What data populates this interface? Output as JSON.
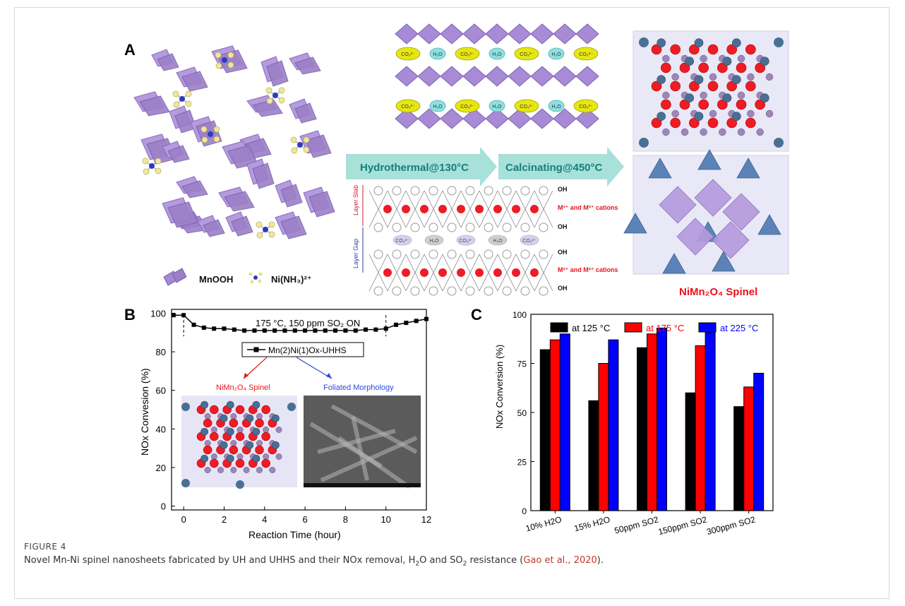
{
  "figure": {
    "label": "FIGURE 4",
    "caption_pre": "Novel Mn-Ni spinel nanosheets fabricated by UH and UHHS and their NOx removal, H",
    "caption_sub1": "2",
    "caption_mid": "O and SO",
    "caption_sub2": "2",
    "caption_post": " resistance (",
    "caption_ref": "Gao et al., 2020",
    "caption_end": ")."
  },
  "panels": {
    "a": "A",
    "b": "B",
    "c": "C"
  },
  "panel_a": {
    "legend_mnooh": "MnOOH",
    "legend_ni": "Ni(NH₃)²⁺",
    "arrow1": "Hydrothermal@130°C",
    "arrow2": "Calcinating@450°C",
    "ldh_oh": "OH",
    "ldh_cations": "M²⁺ and M³⁺ cations",
    "layer_slab": "Layer Slab",
    "layer_gap": "Layer Gap",
    "co3": "CO₃²⁻",
    "h2o": "H₂O",
    "spinel_label": "NiMn₂O₄ Spinel",
    "colors": {
      "purple": "#9b7fc7",
      "red": "#e8141b",
      "blue": "#4a6f95",
      "arrow": "#9fd8d3",
      "arrow_text": "#1a8a80"
    }
  },
  "chart_data": [
    {
      "type": "line",
      "panel": "B",
      "annotation": "175 °C, 150 ppm SO₂ ON",
      "xlabel": "Reaction Time (hour)",
      "ylabel": "NOx Convesion (%)",
      "xlim": [
        -0.6,
        12
      ],
      "ylim": [
        -2,
        102
      ],
      "xticks": [
        0,
        2,
        4,
        6,
        8,
        10,
        12
      ],
      "yticks": [
        0,
        20,
        40,
        60,
        80,
        100
      ],
      "vlines": [
        0,
        10
      ],
      "series": [
        {
          "name": "Mn(2)Ni(1)Ox-UHHS",
          "x": [
            -0.5,
            0,
            0.5,
            1,
            1.5,
            2,
            2.5,
            3,
            3.5,
            4,
            4.5,
            5,
            5.5,
            6,
            6.5,
            7,
            7.5,
            8,
            8.5,
            9,
            9.5,
            10,
            10.5,
            11,
            11.5,
            12
          ],
          "y": [
            99,
            99,
            94,
            92.5,
            92,
            92,
            91.5,
            91,
            91,
            91,
            91,
            91,
            91,
            91,
            91,
            91,
            91,
            91,
            91,
            91.5,
            91.5,
            92,
            94,
            95,
            96,
            97
          ]
        }
      ],
      "inset_labels": [
        "NiMn₂O₄ Spinel",
        "Foliated Morphology"
      ],
      "inset_label_colors": [
        "#e8141b",
        "#2b4bd8"
      ]
    },
    {
      "type": "bar",
      "panel": "C",
      "categories": [
        "10% H2O",
        "15% H2O",
        "50ppm SO2",
        "150ppm SO2",
        "300ppm SO2"
      ],
      "xlabel": "",
      "ylabel": "NOx Conversion (%)",
      "ylim": [
        0,
        100
      ],
      "yticks": [
        0,
        25,
        50,
        75,
        100
      ],
      "series": [
        {
          "name": "at 125 °C",
          "color": "#000000",
          "values": [
            82,
            56,
            83,
            60,
            53
          ]
        },
        {
          "name": "at 175 °C",
          "color": "#ff0000",
          "values": [
            87,
            75,
            90,
            84,
            63
          ]
        },
        {
          "name": "at 225 °C",
          "color": "#0000ff",
          "values": [
            90,
            87,
            93,
            91,
            70
          ]
        }
      ],
      "legend_position": "top"
    }
  ]
}
